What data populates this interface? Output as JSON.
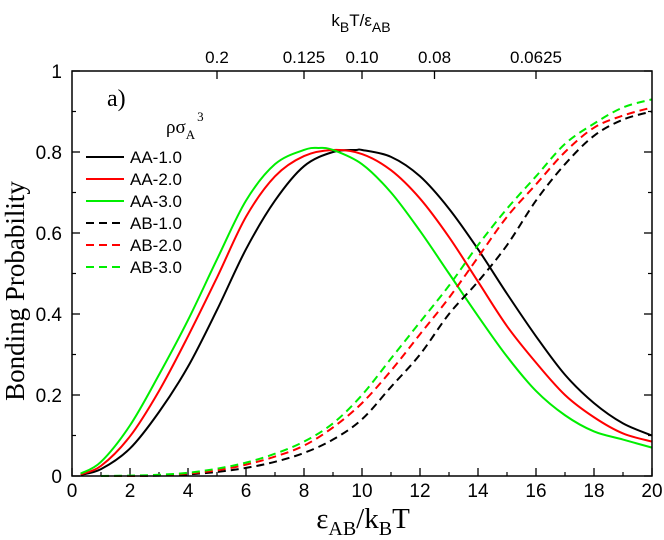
{
  "chart_data": {
    "type": "line",
    "panel_label": "a)",
    "xlabel": {
      "main": "ε",
      "sub1": "AB",
      "mid": "/k",
      "sub2": "B",
      "tail": "T"
    },
    "ylabel": "Bonding Probability",
    "top_axis_label": {
      "k": "k",
      "sub_b": "B",
      "mid": "T/ε",
      "sub_ab": "AB"
    },
    "xlim": [
      0,
      20
    ],
    "ylim": [
      0,
      1
    ],
    "x_ticks": [
      0,
      2,
      4,
      6,
      8,
      10,
      12,
      14,
      16,
      18,
      20
    ],
    "x_tick_labels": [
      "0",
      "2",
      "4",
      "6",
      "8",
      "10",
      "12",
      "14",
      "16",
      "18",
      "20"
    ],
    "y_ticks": [
      0,
      0.2,
      0.4,
      0.6,
      0.8,
      1
    ],
    "y_tick_labels": [
      "0",
      "0.2",
      "0.4",
      "0.6",
      "0.8",
      "1"
    ],
    "top_ticks": [
      {
        "at": 5,
        "label": "0.2"
      },
      {
        "at": 8,
        "label": "0.125"
      },
      {
        "at": 10,
        "label": "0.10"
      },
      {
        "at": 12.5,
        "label": "0.08"
      },
      {
        "at": 16,
        "label": "0.0625"
      }
    ],
    "legend_title": {
      "rho": "ρσ",
      "sub": "A",
      "sup": "3"
    },
    "legend_position": "top-left",
    "series": [
      {
        "name": "AA-1.0",
        "color": "#000000",
        "dash": "solid",
        "x": [
          0.3,
          1,
          2,
          3,
          4,
          5,
          6,
          7,
          8,
          9,
          9.8,
          10,
          11,
          12,
          13,
          14,
          15,
          16,
          17,
          18,
          19,
          20
        ],
        "y": [
          0.003,
          0.017,
          0.068,
          0.158,
          0.27,
          0.41,
          0.56,
          0.68,
          0.765,
          0.8,
          0.805,
          0.805,
          0.788,
          0.74,
          0.66,
          0.56,
          0.45,
          0.345,
          0.25,
          0.18,
          0.13,
          0.1
        ]
      },
      {
        "name": "AA-2.0",
        "color": "#ff0000",
        "dash": "solid",
        "x": [
          0.3,
          1,
          2,
          3,
          4,
          5,
          6,
          7,
          8,
          9,
          10,
          11,
          12,
          13,
          14,
          15,
          16,
          17,
          18,
          19,
          20
        ],
        "y": [
          0.004,
          0.025,
          0.098,
          0.21,
          0.345,
          0.49,
          0.64,
          0.74,
          0.79,
          0.805,
          0.795,
          0.755,
          0.685,
          0.59,
          0.48,
          0.37,
          0.28,
          0.2,
          0.145,
          0.105,
          0.085
        ]
      },
      {
        "name": "AA-3.0",
        "color": "#00ee00",
        "dash": "solid",
        "x": [
          0.3,
          1,
          2,
          3,
          4,
          5,
          6,
          7,
          8,
          8.5,
          9,
          10,
          11,
          12,
          13,
          14,
          15,
          16,
          17,
          18,
          19,
          20
        ],
        "y": [
          0.006,
          0.035,
          0.125,
          0.25,
          0.385,
          0.535,
          0.68,
          0.77,
          0.805,
          0.81,
          0.805,
          0.77,
          0.7,
          0.605,
          0.5,
          0.395,
          0.295,
          0.21,
          0.15,
          0.11,
          0.09,
          0.07
        ]
      },
      {
        "name": "AB-1.0",
        "color": "#000000",
        "dash": "dashed",
        "x": [
          1,
          2,
          3,
          4,
          5,
          6,
          7,
          8,
          9,
          10,
          11,
          12,
          13,
          14,
          15,
          16,
          17,
          18,
          19,
          20
        ],
        "y": [
          0,
          0,
          0.001,
          0.004,
          0.01,
          0.02,
          0.035,
          0.057,
          0.09,
          0.14,
          0.22,
          0.3,
          0.4,
          0.48,
          0.57,
          0.68,
          0.77,
          0.84,
          0.88,
          0.9
        ]
      },
      {
        "name": "AB-2.0",
        "color": "#ff0000",
        "dash": "dashed",
        "x": [
          1,
          2,
          3,
          4,
          5,
          6,
          7,
          8,
          9,
          10,
          11,
          12,
          13,
          14,
          15,
          16,
          17,
          18,
          19,
          20
        ],
        "y": [
          0,
          0,
          0.002,
          0.006,
          0.014,
          0.028,
          0.048,
          0.075,
          0.12,
          0.18,
          0.26,
          0.35,
          0.44,
          0.54,
          0.64,
          0.72,
          0.8,
          0.86,
          0.89,
          0.91
        ]
      },
      {
        "name": "AB-3.0",
        "color": "#00ee00",
        "dash": "dashed",
        "x": [
          1,
          2,
          3,
          4,
          5,
          6,
          7,
          8,
          9,
          10,
          11,
          12,
          13,
          14,
          15,
          16,
          17,
          18,
          19,
          20
        ],
        "y": [
          0,
          0.001,
          0.003,
          0.008,
          0.018,
          0.033,
          0.055,
          0.085,
          0.13,
          0.2,
          0.29,
          0.38,
          0.47,
          0.57,
          0.66,
          0.74,
          0.82,
          0.87,
          0.91,
          0.93
        ]
      }
    ]
  }
}
